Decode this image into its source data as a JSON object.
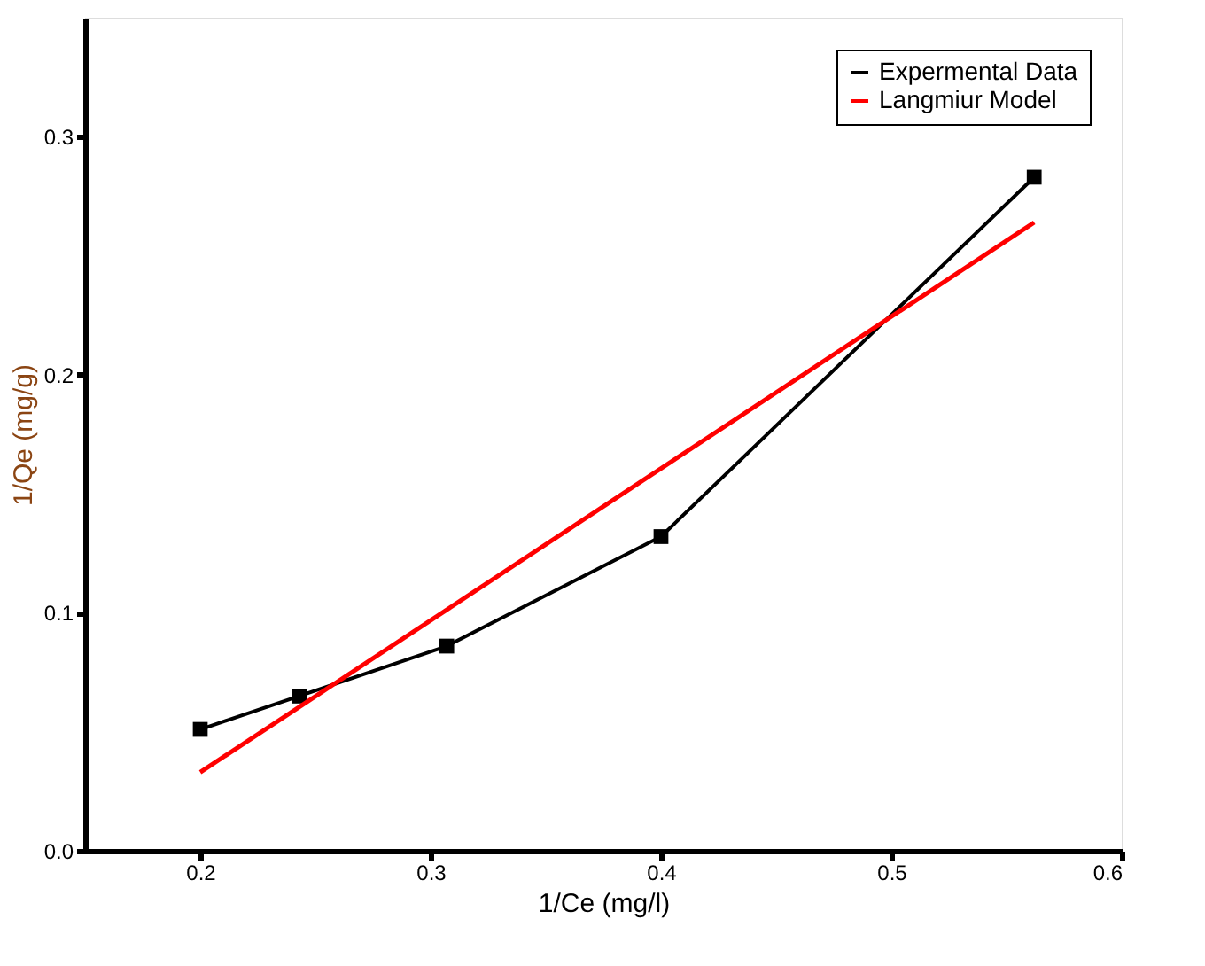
{
  "chart_data": {
    "type": "line",
    "xlabel": "1/Ce (mg/l)",
    "ylabel": "1/Qe (mg/g)",
    "xlim": [
      0.15,
      0.6
    ],
    "xticks": [
      0.2,
      0.3,
      0.4,
      0.5,
      0.6
    ],
    "ylim": [
      0,
      0.35
    ],
    "yticks": [
      {
        "value": 0,
        "label": "0.0"
      },
      0.1,
      0.2,
      0.3
    ],
    "line_style": "solid",
    "grid": false,
    "legend": "top right",
    "series": [
      {
        "name": "Expermental Data",
        "color": "#000000",
        "marker": "square",
        "x": [
          0.2,
          0.243,
          0.307,
          0.4,
          0.562
        ],
        "values": [
          0.051,
          0.065,
          0.086,
          0.132,
          0.283
        ]
      },
      {
        "name": "Langmiur Model",
        "color": "#ff0000",
        "marker": "none",
        "x": [
          0.2,
          0.562
        ],
        "values": [
          0.033,
          0.264
        ]
      }
    ]
  }
}
